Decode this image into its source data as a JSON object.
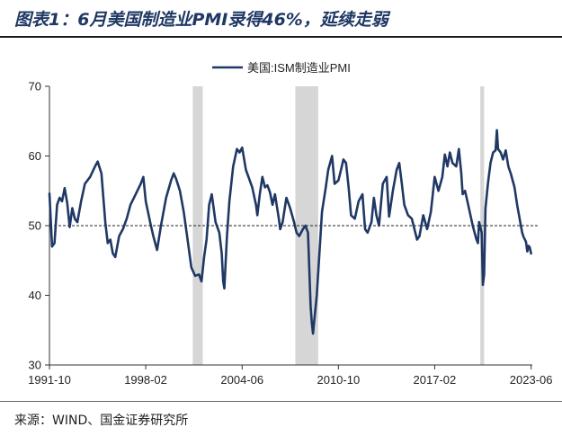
{
  "header": {
    "title": "图表1：6月美国制造业PMI录得46%，延续走弱"
  },
  "footer": {
    "source": "来源：WIND、国金证券研究所"
  },
  "chart_data": {
    "type": "line",
    "title": "图表1：6月美国制造业PMI录得46%，延续走弱",
    "xlabel": "",
    "ylabel": "",
    "ylim": [
      30,
      70
    ],
    "yticks": [
      "30",
      "40",
      "50",
      "60",
      "70"
    ],
    "xlim": [
      1991.75,
      2023.5
    ],
    "xticks": [
      {
        "label": "1991-10",
        "x": 1991.75
      },
      {
        "label": "1998-02",
        "x": 1998.08
      },
      {
        "label": "2004-06",
        "x": 2004.42
      },
      {
        "label": "2010-10",
        "x": 2010.75
      },
      {
        "label": "2017-02",
        "x": 2017.08
      },
      {
        "label": "2023-06",
        "x": 2023.42
      }
    ],
    "legend": [
      "美国:ISM制造业PMI"
    ],
    "legend_position": "top-center",
    "reference_line": {
      "y": 50,
      "style": "dashed"
    },
    "recessions": [
      [
        2001.17,
        2001.83
      ],
      [
        2007.92,
        2009.42
      ],
      [
        2020.08,
        2020.33
      ]
    ],
    "series": [
      {
        "name": "美国:ISM制造业PMI",
        "color": "#1f3864",
        "points": [
          [
            1991.75,
            54.6
          ],
          [
            1991.92,
            47.0
          ],
          [
            1992.08,
            47.5
          ],
          [
            1992.25,
            53.0
          ],
          [
            1992.42,
            54.0
          ],
          [
            1992.58,
            53.5
          ],
          [
            1992.75,
            55.4
          ],
          [
            1992.92,
            53.2
          ],
          [
            1993.08,
            49.8
          ],
          [
            1993.25,
            52.5
          ],
          [
            1993.42,
            51.0
          ],
          [
            1993.58,
            50.5
          ],
          [
            1993.83,
            53.5
          ],
          [
            1994.08,
            56.0
          ],
          [
            1994.42,
            57.0
          ],
          [
            1994.75,
            58.5
          ],
          [
            1994.92,
            59.2
          ],
          [
            1995.17,
            57.5
          ],
          [
            1995.42,
            50.5
          ],
          [
            1995.58,
            47.5
          ],
          [
            1995.75,
            48.0
          ],
          [
            1995.92,
            46.0
          ],
          [
            1996.08,
            45.5
          ],
          [
            1996.33,
            48.5
          ],
          [
            1996.58,
            49.5
          ],
          [
            1996.83,
            51.0
          ],
          [
            1997.08,
            53.0
          ],
          [
            1997.42,
            54.5
          ],
          [
            1997.75,
            56.0
          ],
          [
            1997.92,
            57.0
          ],
          [
            1998.08,
            53.5
          ],
          [
            1998.42,
            50.0
          ],
          [
            1998.58,
            48.5
          ],
          [
            1998.83,
            46.5
          ],
          [
            1999.08,
            50.0
          ],
          [
            1999.42,
            54.0
          ],
          [
            1999.75,
            56.5
          ],
          [
            1999.92,
            57.5
          ],
          [
            2000.08,
            56.7
          ],
          [
            2000.33,
            55.0
          ],
          [
            2000.58,
            52.0
          ],
          [
            2000.83,
            48.0
          ],
          [
            2001.08,
            44.0
          ],
          [
            2001.33,
            42.8
          ],
          [
            2001.58,
            43.0
          ],
          [
            2001.75,
            42.0
          ],
          [
            2001.92,
            45.5
          ],
          [
            2002.08,
            48.0
          ],
          [
            2002.25,
            53.0
          ],
          [
            2002.42,
            54.5
          ],
          [
            2002.67,
            50.5
          ],
          [
            2002.92,
            49.0
          ],
          [
            2003.08,
            46.0
          ],
          [
            2003.17,
            42.0
          ],
          [
            2003.25,
            41.0
          ],
          [
            2003.42,
            48.5
          ],
          [
            2003.58,
            53.5
          ],
          [
            2003.83,
            58.5
          ],
          [
            2004.08,
            61.0
          ],
          [
            2004.25,
            60.5
          ],
          [
            2004.42,
            61.2
          ],
          [
            2004.67,
            58.0
          ],
          [
            2004.92,
            56.5
          ],
          [
            2005.08,
            55.5
          ],
          [
            2005.33,
            53.0
          ],
          [
            2005.42,
            51.5
          ],
          [
            2005.58,
            54.5
          ],
          [
            2005.75,
            57.0
          ],
          [
            2005.92,
            55.5
          ],
          [
            2006.08,
            55.8
          ],
          [
            2006.25,
            54.8
          ],
          [
            2006.42,
            53.0
          ],
          [
            2006.58,
            54.5
          ],
          [
            2006.83,
            51.0
          ],
          [
            2006.92,
            49.5
          ],
          [
            2007.08,
            50.5
          ],
          [
            2007.33,
            54.0
          ],
          [
            2007.58,
            52.5
          ],
          [
            2007.83,
            50.5
          ],
          [
            2008.0,
            49.0
          ],
          [
            2008.17,
            48.5
          ],
          [
            2008.42,
            49.5
          ],
          [
            2008.58,
            50.0
          ],
          [
            2008.75,
            49.0
          ],
          [
            2008.83,
            44.0
          ],
          [
            2008.92,
            38.5
          ],
          [
            2009.0,
            36.0
          ],
          [
            2009.08,
            34.5
          ],
          [
            2009.17,
            36.5
          ],
          [
            2009.33,
            40.0
          ],
          [
            2009.5,
            46.0
          ],
          [
            2009.67,
            52.0
          ],
          [
            2009.92,
            55.5
          ],
          [
            2010.08,
            58.0
          ],
          [
            2010.33,
            60.0
          ],
          [
            2010.5,
            56.0
          ],
          [
            2010.75,
            56.5
          ],
          [
            2010.92,
            58.0
          ],
          [
            2011.08,
            59.5
          ],
          [
            2011.25,
            59.0
          ],
          [
            2011.42,
            55.5
          ],
          [
            2011.58,
            51.5
          ],
          [
            2011.83,
            51.0
          ],
          [
            2012.08,
            53.5
          ],
          [
            2012.33,
            54.5
          ],
          [
            2012.5,
            49.5
          ],
          [
            2012.67,
            49.0
          ],
          [
            2012.92,
            50.5
          ],
          [
            2013.08,
            54.0
          ],
          [
            2013.25,
            51.5
          ],
          [
            2013.42,
            50.0
          ],
          [
            2013.67,
            56.0
          ],
          [
            2013.92,
            57.0
          ],
          [
            2014.08,
            51.3
          ],
          [
            2014.33,
            55.0
          ],
          [
            2014.58,
            58.0
          ],
          [
            2014.75,
            59.0
          ],
          [
            2014.92,
            56.0
          ],
          [
            2015.08,
            53.0
          ],
          [
            2015.33,
            51.5
          ],
          [
            2015.58,
            51.0
          ],
          [
            2015.92,
            48.0
          ],
          [
            2016.08,
            48.5
          ],
          [
            2016.33,
            51.5
          ],
          [
            2016.58,
            49.5
          ],
          [
            2016.83,
            52.0
          ],
          [
            2017.08,
            57.0
          ],
          [
            2017.33,
            55.0
          ],
          [
            2017.58,
            57.0
          ],
          [
            2017.75,
            60.2
          ],
          [
            2017.92,
            58.5
          ],
          [
            2018.08,
            60.5
          ],
          [
            2018.25,
            59.0
          ],
          [
            2018.5,
            58.5
          ],
          [
            2018.67,
            61.0
          ],
          [
            2018.83,
            57.5
          ],
          [
            2018.92,
            54.5
          ],
          [
            2019.08,
            55.0
          ],
          [
            2019.33,
            52.5
          ],
          [
            2019.58,
            50.0
          ],
          [
            2019.83,
            48.0
          ],
          [
            2019.92,
            47.5
          ],
          [
            2020.0,
            50.5
          ],
          [
            2020.17,
            49.0
          ],
          [
            2020.25,
            41.5
          ],
          [
            2020.33,
            43.0
          ],
          [
            2020.42,
            52.5
          ],
          [
            2020.58,
            56.0
          ],
          [
            2020.75,
            59.0
          ],
          [
            2020.92,
            60.5
          ],
          [
            2021.08,
            60.8
          ],
          [
            2021.17,
            63.7
          ],
          [
            2021.25,
            61.0
          ],
          [
            2021.42,
            60.5
          ],
          [
            2021.58,
            59.5
          ],
          [
            2021.75,
            60.8
          ],
          [
            2021.92,
            58.5
          ],
          [
            2022.08,
            57.5
          ],
          [
            2022.33,
            55.5
          ],
          [
            2022.5,
            53.0
          ],
          [
            2022.67,
            50.9
          ],
          [
            2022.83,
            49.0
          ],
          [
            2022.92,
            48.4
          ],
          [
            2023.08,
            47.7
          ],
          [
            2023.17,
            46.3
          ],
          [
            2023.25,
            47.1
          ],
          [
            2023.33,
            46.9
          ],
          [
            2023.42,
            46.0
          ]
        ]
      }
    ]
  }
}
